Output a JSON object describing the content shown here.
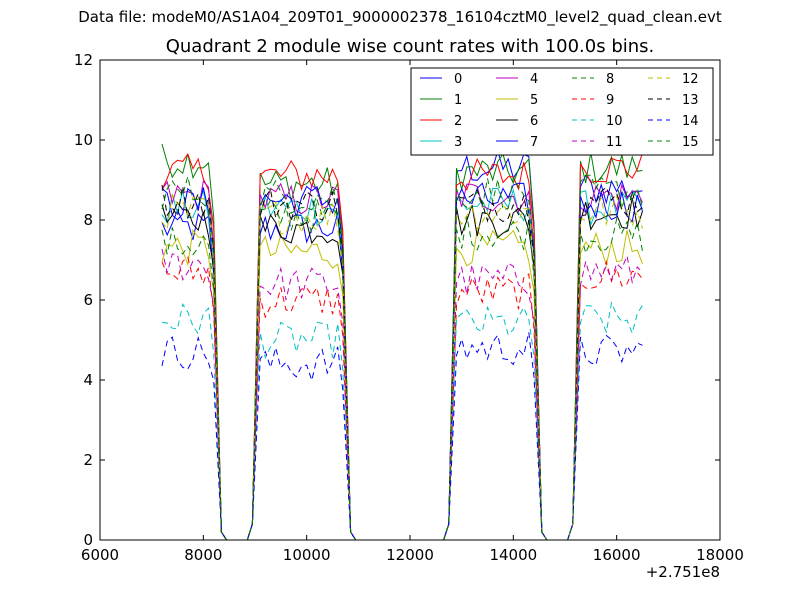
{
  "suptitle": "Data file: modeM0/AS1A04_209T01_9000002378_16104cztM0_level2_quad_clean.evt",
  "chart_data": {
    "type": "line",
    "title": "Quadrant 2 module wise count rates with 100.0s bins.",
    "xlabel": "",
    "ylabel": "",
    "x_offset_label": "+2.751e8",
    "xlim": [
      6000,
      18000
    ],
    "ylim": [
      0,
      12
    ],
    "xticks": [
      "6000",
      "8000",
      "10000",
      "12000",
      "14000",
      "16000",
      "18000"
    ],
    "yticks": [
      "0",
      "2",
      "4",
      "6",
      "8",
      "10",
      "12"
    ],
    "legend_position": "top-right",
    "time_segments": [
      {
        "start": 7200,
        "end": 8200
      },
      {
        "start": 9100,
        "end": 10700
      },
      {
        "start": 12900,
        "end": 14400
      },
      {
        "start": 15300,
        "end": 16500
      }
    ],
    "series": [
      {
        "name": "0",
        "color": "#0000ff",
        "dash": "solid",
        "levels": [
          7.8,
          7.8,
          9.3,
          8.8
        ]
      },
      {
        "name": "1",
        "color": "#008000",
        "dash": "solid",
        "levels": [
          9.5,
          8.9,
          9.2,
          9.3
        ]
      },
      {
        "name": "2",
        "color": "#ff0000",
        "dash": "solid",
        "levels": [
          9.2,
          9.1,
          9.1,
          9.3
        ]
      },
      {
        "name": "3",
        "color": "#00bfbf",
        "dash": "solid",
        "levels": [
          8.3,
          8.3,
          8.4,
          8.3
        ]
      },
      {
        "name": "4",
        "color": "#bf00bf",
        "dash": "solid",
        "levels": [
          8.6,
          8.5,
          8.6,
          8.6
        ]
      },
      {
        "name": "5",
        "color": "#bfbf00",
        "dash": "solid",
        "levels": [
          7.3,
          7.2,
          7.3,
          7.3
        ]
      },
      {
        "name": "6",
        "color": "#000000",
        "dash": "solid",
        "levels": [
          8.0,
          7.8,
          8.0,
          8.2
        ]
      },
      {
        "name": "7",
        "color": "#0000ff",
        "dash": "solid",
        "levels": [
          8.4,
          8.5,
          8.5,
          8.4
        ]
      },
      {
        "name": "8",
        "color": "#008000",
        "dash": "dashed",
        "levels": [
          7.4,
          8.1,
          7.7,
          7.6
        ]
      },
      {
        "name": "9",
        "color": "#ff0000",
        "dash": "dashed",
        "levels": [
          6.7,
          6.0,
          6.2,
          6.6
        ]
      },
      {
        "name": "10",
        "color": "#00bfbf",
        "dash": "dashed",
        "levels": [
          5.5,
          5.0,
          5.4,
          5.5
        ]
      },
      {
        "name": "11",
        "color": "#bf00bf",
        "dash": "dashed",
        "levels": [
          6.9,
          6.4,
          6.5,
          6.7
        ]
      },
      {
        "name": "12",
        "color": "#bfbf00",
        "dash": "dashed",
        "levels": [
          8.2,
          8.1,
          8.2,
          8.2
        ]
      },
      {
        "name": "13",
        "color": "#000000",
        "dash": "dashed",
        "levels": [
          8.5,
          8.4,
          8.4,
          8.5
        ]
      },
      {
        "name": "14",
        "color": "#0000ff",
        "dash": "dashed",
        "levels": [
          4.7,
          4.4,
          4.8,
          4.7
        ]
      },
      {
        "name": "15",
        "color": "#008000",
        "dash": "dashed",
        "levels": [
          8.7,
          8.6,
          8.7,
          8.7
        ]
      }
    ]
  }
}
